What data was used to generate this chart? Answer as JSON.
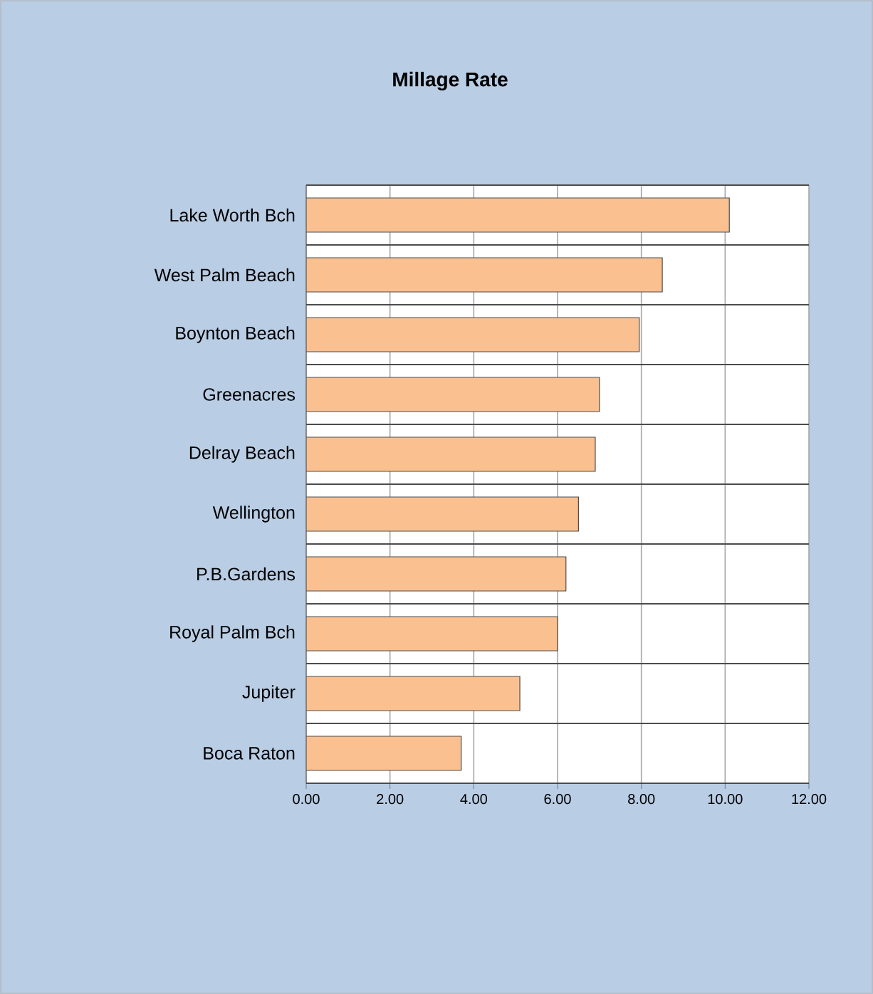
{
  "chart_data": {
    "type": "bar",
    "orientation": "horizontal",
    "title": "Millage Rate",
    "categories": [
      "Lake Worth Bch",
      "West Palm Beach",
      "Boynton Beach",
      "Greenacres",
      "Delray Beach",
      "Wellington",
      "P.B.Gardens",
      "Royal Palm Bch",
      "Jupiter",
      "Boca Raton"
    ],
    "values": [
      10.1,
      8.5,
      7.95,
      7.0,
      6.9,
      6.5,
      6.2,
      6.0,
      5.1,
      3.7
    ],
    "color": "#fac090",
    "xlim": [
      0,
      12
    ],
    "xticks": [
      {
        "value": 0,
        "label": "0.00"
      },
      {
        "value": 2,
        "label": "2.00"
      },
      {
        "value": 4,
        "label": "4.00"
      },
      {
        "value": 6,
        "label": "6.00"
      },
      {
        "value": 8,
        "label": "8.00"
      },
      {
        "value": 10,
        "label": "10.00"
      },
      {
        "value": 12,
        "label": "12.00"
      }
    ],
    "grid": true
  }
}
